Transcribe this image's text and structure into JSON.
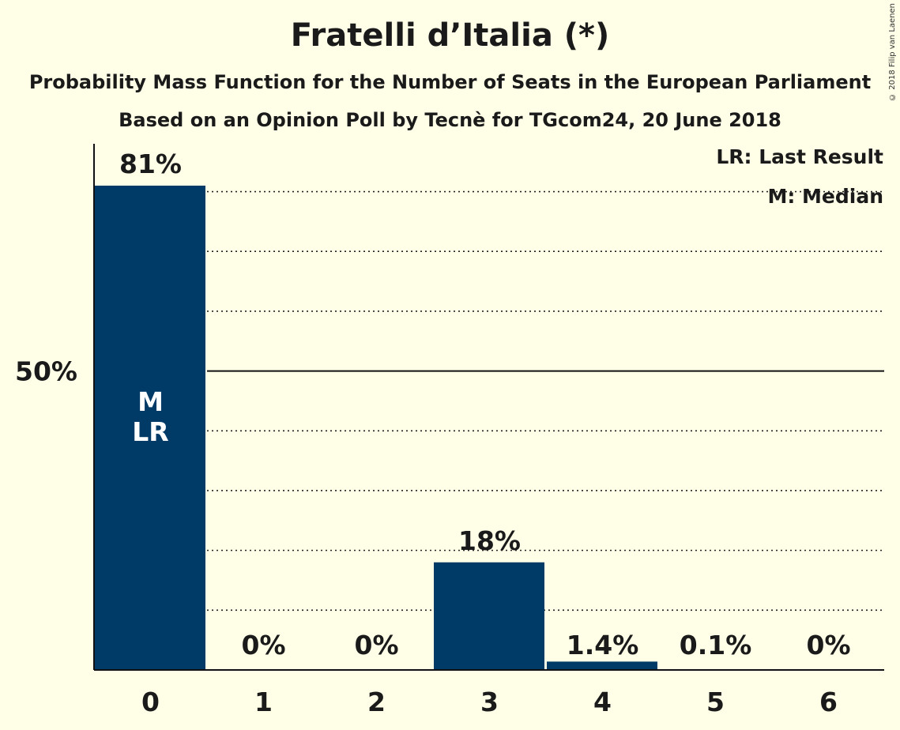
{
  "title": "Fratelli d’Italia (*)",
  "subtitle1": "Probability Mass Function for the Number of Seats in the European Parliament",
  "subtitle2": "Based on an Opinion Poll by Tecnè for TGcom24, 20 June 2018",
  "copyright": "© 2018 Filip van Laenen",
  "legend": {
    "last_result": "LR: Last Result",
    "median": "M: Median"
  },
  "colors": {
    "bar": "#003A66",
    "background": "#FFFEE6"
  },
  "chart_data": {
    "type": "bar",
    "categories": [
      "0",
      "1",
      "2",
      "3",
      "4",
      "5",
      "6"
    ],
    "values": [
      81,
      0,
      0,
      18,
      1.4,
      0.1,
      0
    ],
    "data_labels": [
      "81%",
      "0%",
      "0%",
      "18%",
      "1.4%",
      "0.1%",
      "0%"
    ],
    "ylim": [
      0,
      88
    ],
    "yticks": [
      {
        "value": 50,
        "label": "50%"
      }
    ],
    "gridlines_dotted": [
      10,
      20,
      30,
      40,
      60,
      70,
      80
    ],
    "gridline_solid": 50,
    "bar_markers": [
      {
        "category": "0",
        "lines": [
          "M",
          "LR"
        ]
      }
    ]
  }
}
